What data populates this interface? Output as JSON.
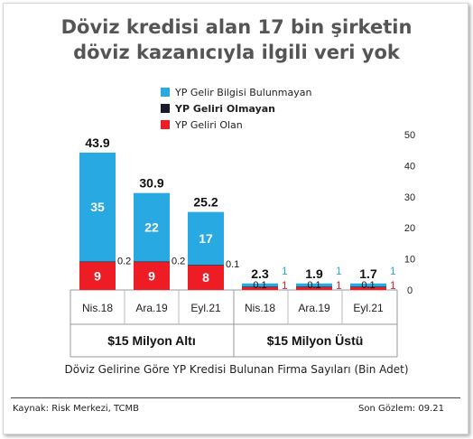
{
  "title_line1": "Döviz kredisi alan 17 bin şirketin",
  "title_line2": "döviz kazanıcıyla ilgili veri yok",
  "subtitle": "Döviz Gelirine Göre YP Kredisi Bulunan Firma Sayıları (Bin Adet)",
  "source": "Kaynak: Risk Merkezi, TCMB",
  "last_obs": "Son Gözlem: 09.21",
  "colors": {
    "no_info": "#29a9e1",
    "no_income": "#1a1a2e",
    "with_income": "#ee1c25"
  },
  "chart_data": {
    "type": "bar",
    "stacked": true,
    "groups": [
      {
        "label": "$15 Milyon Altı",
        "categories": [
          "Nis.18",
          "Ara.19",
          "Eyl.21"
        ]
      },
      {
        "label": "$15 Milyon Üstü",
        "categories": [
          "Nis.18",
          "Ara.19",
          "Eyl.21"
        ]
      }
    ],
    "categories": [
      "Nis.18",
      "Ara.19",
      "Eyl.21",
      "Nis.18",
      "Ara.19",
      "Eyl.21"
    ],
    "series": [
      {
        "name": "YP Geliri Olan",
        "color": "#ee1c25",
        "values": [
          9,
          9,
          8,
          1,
          1,
          1
        ],
        "labels": [
          "9",
          "9",
          "8",
          "1",
          "1",
          "1"
        ]
      },
      {
        "name": "YP Geliri Olmayan",
        "color": "#1a1a2e",
        "values": [
          0.2,
          0.2,
          0.1,
          0.1,
          0.1,
          0.1
        ],
        "labels": [
          "0.2",
          "0.2",
          "0.1",
          "0.1",
          "0.1",
          "0.1"
        ]
      },
      {
        "name": "YP Gelir Bilgisi Bulunmayan",
        "color": "#29a9e1",
        "values": [
          35,
          22,
          17,
          1,
          1,
          1
        ],
        "labels": [
          "35",
          "22",
          "17",
          "1",
          "1",
          "1"
        ]
      }
    ],
    "totals": [
      "43.9",
      "30.9",
      "25.2",
      "2.3",
      "1.9",
      "1.7"
    ],
    "legend": [
      "YP Gelir Bilgisi Bulunmayan",
      "YP Geliri Olmayan",
      "YP Geliri Olan"
    ],
    "yticks": [
      0,
      10,
      20,
      30,
      40,
      50
    ],
    "ylim": [
      0,
      50
    ],
    "legend_position": "top-center",
    "grid": false
  }
}
